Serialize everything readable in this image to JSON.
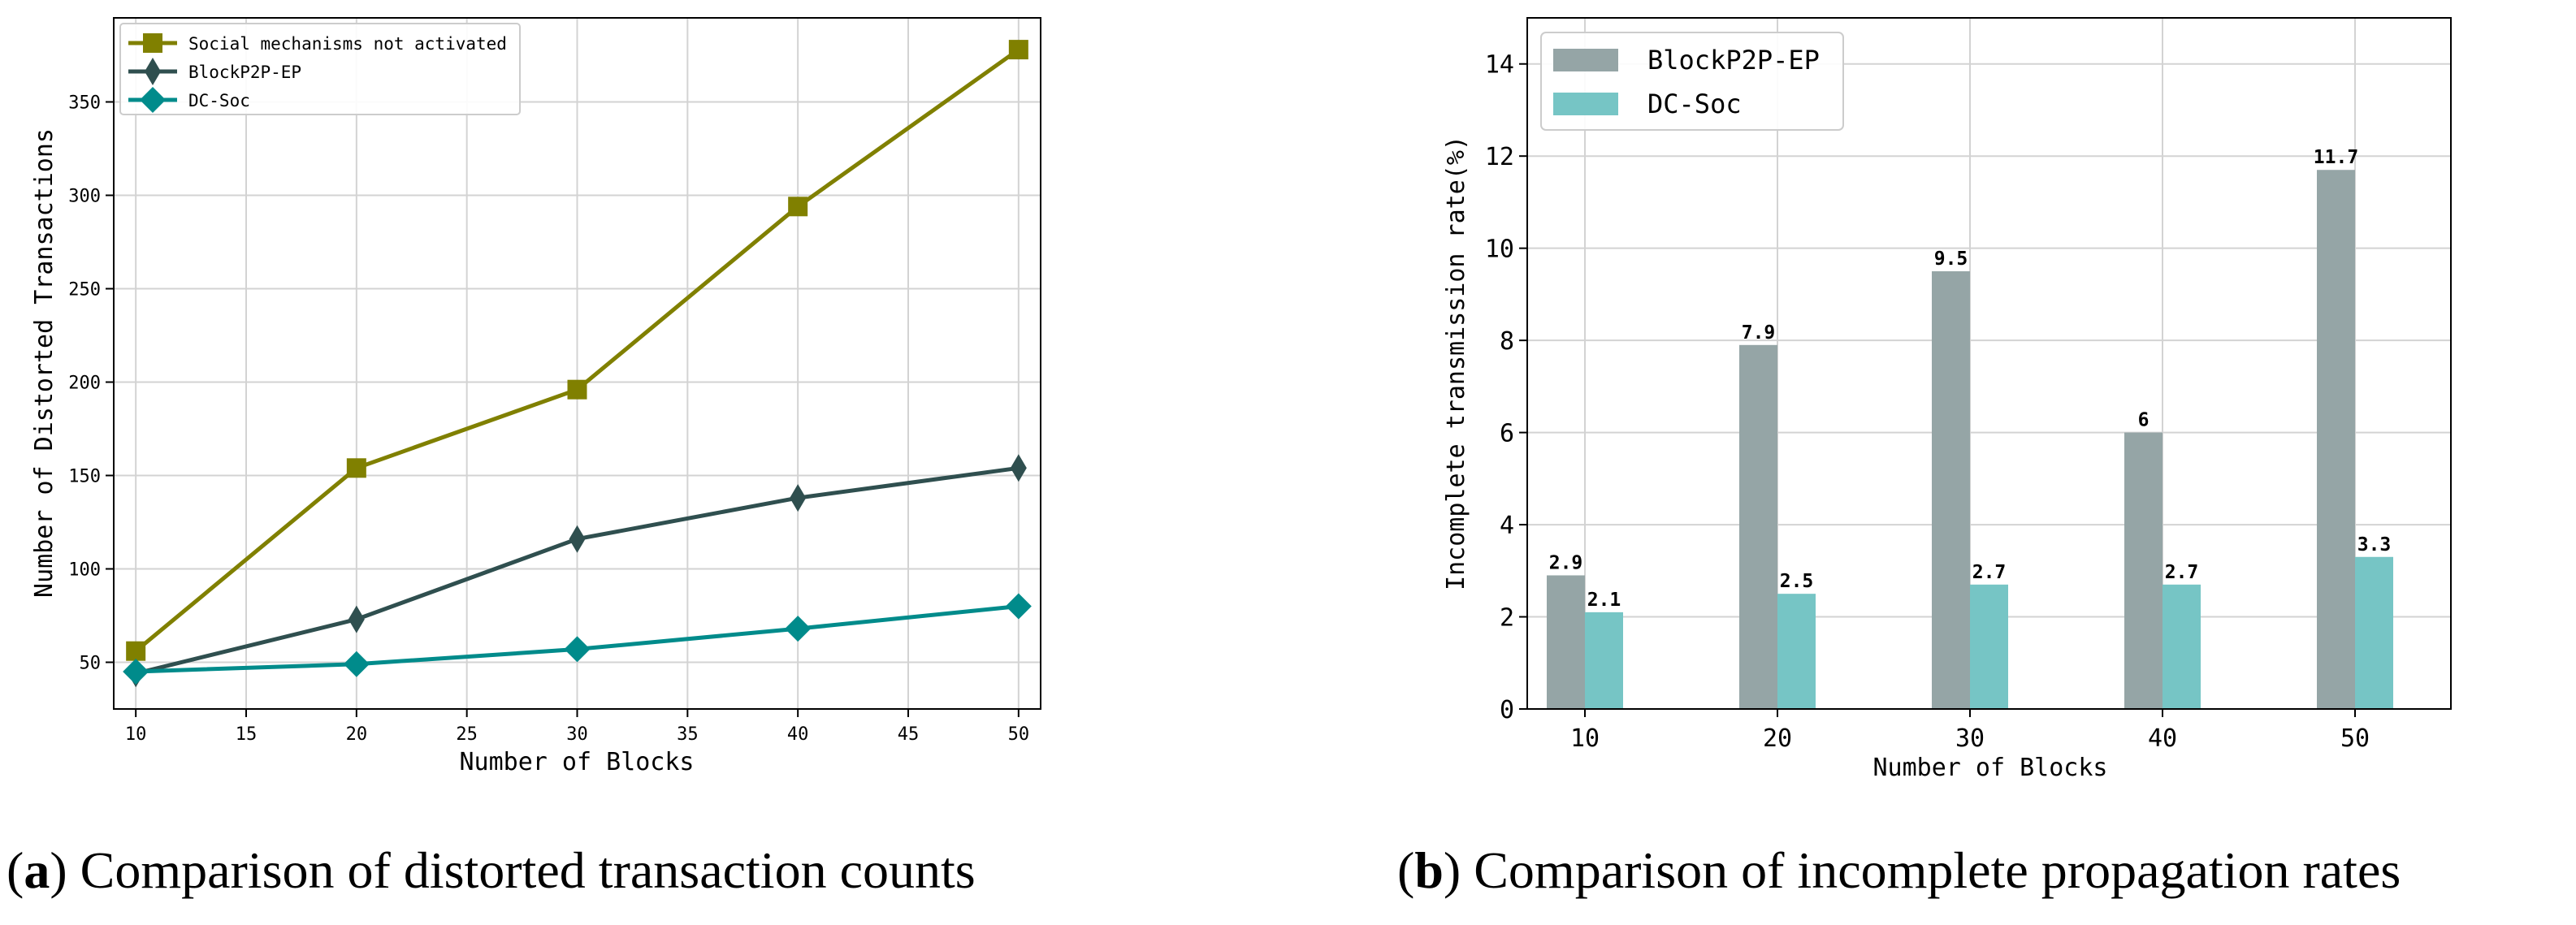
{
  "panels": {
    "a": {
      "letter": "(a)",
      "caption": "Comparison of distorted transaction counts"
    },
    "b": {
      "letter": "(b)",
      "caption": "Comparison of incomplete propagation rates"
    }
  },
  "colors": {
    "social": "#808000",
    "blockp2p_line": "#2f4f4f",
    "dcsoc_line": "#008b8b",
    "blockp2p_bar": "#95a5a6",
    "dcsoc_bar": "#76c5c5",
    "grid": "#d3d3d3"
  },
  "chart_data": [
    {
      "type": "line",
      "title": "",
      "xlabel": "Number of Blocks",
      "ylabel": "Number of Distorted Transactions",
      "x": [
        10,
        20,
        30,
        40,
        50
      ],
      "xticks": [
        10,
        15,
        20,
        25,
        30,
        35,
        40,
        45,
        50
      ],
      "yticks": [
        50,
        100,
        150,
        200,
        250,
        300,
        350
      ],
      "xlim": [
        9,
        51
      ],
      "ylim": [
        25,
        395
      ],
      "grid": true,
      "legend": "top-left",
      "series": [
        {
          "name": "Social mechanisms not activated",
          "marker": "square",
          "values": [
            56,
            154,
            196,
            294,
            378
          ]
        },
        {
          "name": "BlockP2P-EP",
          "marker": "thin-diamond",
          "values": [
            44,
            73,
            116,
            138,
            154
          ]
        },
        {
          "name": "DC-Soc",
          "marker": "diamond",
          "values": [
            45,
            49,
            57,
            68,
            80
          ]
        }
      ]
    },
    {
      "type": "bar",
      "title": "",
      "xlabel": "Number of Blocks",
      "ylabel": "Incomplete transmission rate(%)",
      "categories": [
        "10",
        "20",
        "30",
        "40",
        "50"
      ],
      "yticks": [
        0,
        2,
        4,
        6,
        8,
        10,
        12,
        14
      ],
      "ylim": [
        0,
        15
      ],
      "grid": true,
      "legend": "top-left",
      "series": [
        {
          "name": "BlockP2P-EP",
          "values": [
            2.9,
            7.9,
            9.5,
            6,
            11.7
          ],
          "labels": [
            "2.9",
            "7.9",
            "9.5",
            "6",
            "11.7"
          ]
        },
        {
          "name": "DC-Soc",
          "values": [
            2.1,
            2.5,
            2.7,
            2.7,
            3.3
          ],
          "labels": [
            "2.1",
            "2.5",
            "2.7",
            "2.7",
            "3.3"
          ]
        }
      ]
    }
  ]
}
